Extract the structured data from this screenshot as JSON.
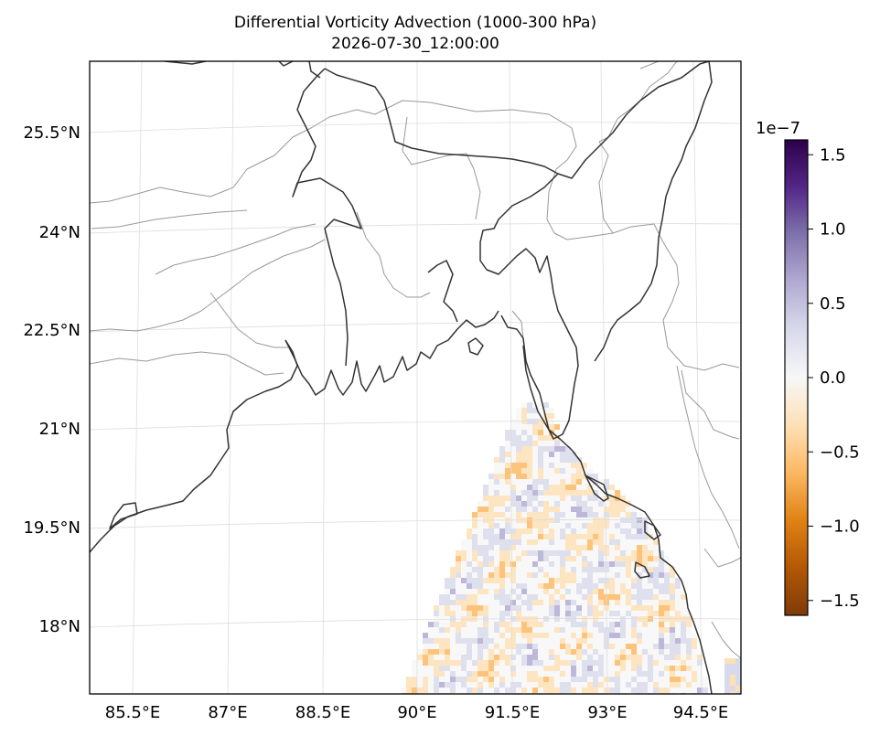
{
  "title": "Differential Vorticity Advection (1000-300 hPa)",
  "subtitle": "2026-07-30_12:00:00",
  "lon_ticks": [
    "85.5°E",
    "87°E",
    "88.5°E",
    "90°E",
    "91.5°E",
    "93°E",
    "94.5°E"
  ],
  "lat_ticks": [
    "25.5°N",
    "24°N",
    "22.5°N",
    "21°N",
    "19.5°N",
    "18°N"
  ],
  "colorbar": {
    "exponent_label": "1e−7",
    "tick_labels": [
      "1.5",
      "1.0",
      "0.5",
      "0.0",
      "−0.5",
      "−1.0",
      "−1.5"
    ],
    "tick_values": [
      1.5,
      1.0,
      0.5,
      0.0,
      -0.5,
      -1.0,
      -1.5
    ],
    "range": [
      -1.6,
      1.6
    ],
    "colors": [
      "#7f3b08",
      "#b35806",
      "#e08214",
      "#fdb863",
      "#fee0b6",
      "#f7f7f7",
      "#d8daeb",
      "#b2abd2",
      "#8073ac",
      "#542788",
      "#2d004b"
    ]
  },
  "map": {
    "colormap": "PuOr",
    "extent_lon": [
      84.85,
      94.95
    ],
    "extent_lat": [
      16.9,
      26.5
    ],
    "land_color": "#ffffff",
    "coastline_color": "#333333",
    "border_color": "#999999"
  }
}
